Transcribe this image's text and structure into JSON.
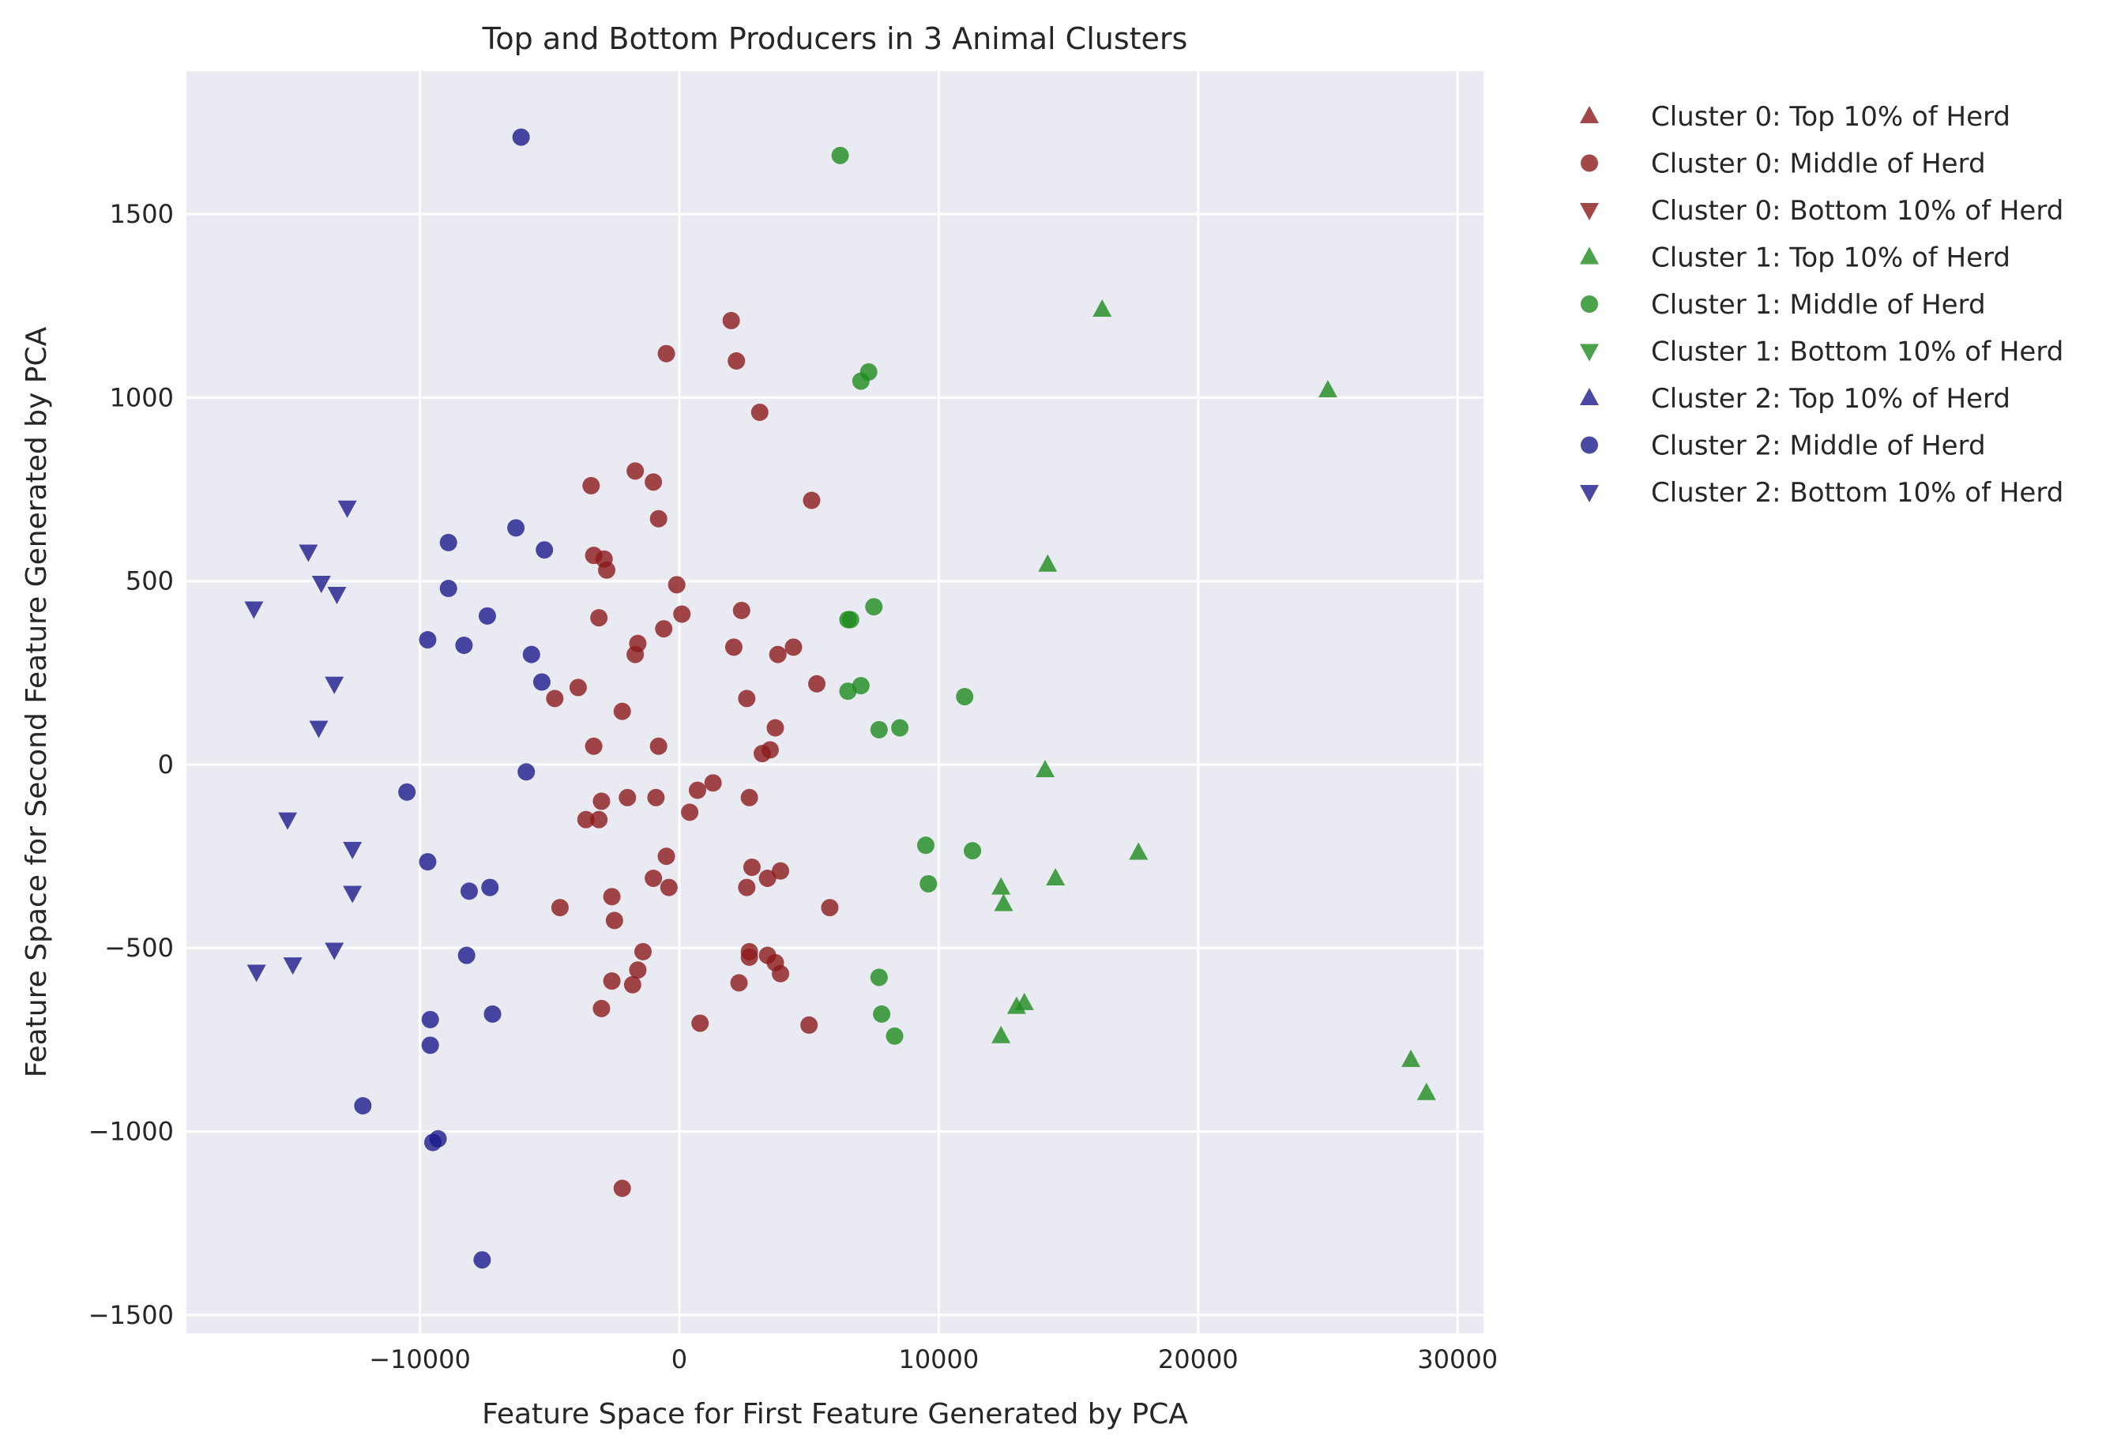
{
  "chart_data": {
    "type": "scatter",
    "title": "Top and Bottom Producers in 3 Animal Clusters",
    "xlabel": "Feature Space for First Feature Generated by PCA",
    "ylabel": "Feature Space for Second Feature Generated by PCA",
    "xlim": [
      -19000,
      31000
    ],
    "ylim": [
      -1550,
      1890
    ],
    "xticks": [
      -10000,
      0,
      10000,
      20000,
      30000
    ],
    "xtick_labels": [
      "−10000",
      "0",
      "10000",
      "20000",
      "30000"
    ],
    "yticks": [
      -1500,
      -1000,
      -500,
      0,
      500,
      1000,
      1500
    ],
    "ytick_labels": [
      "−1500",
      "−1000",
      "−500",
      "0",
      "500",
      "1000",
      "1500"
    ],
    "grid": true,
    "legend_position": "outside-right",
    "series": [
      {
        "name": "Cluster 0: Top 10% of Herd",
        "color": "#8b1a1a",
        "marker": "triangle-up",
        "points": []
      },
      {
        "name": "Cluster 0: Middle of Herd",
        "color": "#8b1a1a",
        "marker": "circle",
        "points": [
          [
            2000,
            1210
          ],
          [
            -500,
            1120
          ],
          [
            2200,
            1100
          ],
          [
            3100,
            960
          ],
          [
            -1700,
            800
          ],
          [
            -1000,
            770
          ],
          [
            -3400,
            760
          ],
          [
            -800,
            670
          ],
          [
            5100,
            720
          ],
          [
            -3300,
            570
          ],
          [
            -2900,
            560
          ],
          [
            -2800,
            530
          ],
          [
            -100,
            490
          ],
          [
            2400,
            420
          ],
          [
            -3100,
            400
          ],
          [
            100,
            410
          ],
          [
            -600,
            370
          ],
          [
            -1600,
            330
          ],
          [
            -1700,
            300
          ],
          [
            2100,
            320
          ],
          [
            4400,
            320
          ],
          [
            3800,
            300
          ],
          [
            -4800,
            180
          ],
          [
            -3900,
            210
          ],
          [
            5300,
            220
          ],
          [
            2600,
            180
          ],
          [
            -2200,
            145
          ],
          [
            3700,
            100
          ],
          [
            -3300,
            50
          ],
          [
            -800,
            50
          ],
          [
            3500,
            40
          ],
          [
            3200,
            30
          ],
          [
            1300,
            -50
          ],
          [
            700,
            -70
          ],
          [
            -2000,
            -90
          ],
          [
            -900,
            -90
          ],
          [
            -3000,
            -100
          ],
          [
            2700,
            -90
          ],
          [
            -3600,
            -150
          ],
          [
            -3100,
            -150
          ],
          [
            400,
            -130
          ],
          [
            -500,
            -250
          ],
          [
            2800,
            -280
          ],
          [
            3900,
            -290
          ],
          [
            -1000,
            -310
          ],
          [
            3400,
            -310
          ],
          [
            2600,
            -335
          ],
          [
            -400,
            -335
          ],
          [
            -2600,
            -360
          ],
          [
            -4600,
            -390
          ],
          [
            5800,
            -390
          ],
          [
            -2500,
            -425
          ],
          [
            -1400,
            -510
          ],
          [
            2700,
            -510
          ],
          [
            3400,
            -520
          ],
          [
            3700,
            -540
          ],
          [
            2700,
            -525
          ],
          [
            3900,
            -570
          ],
          [
            -1600,
            -560
          ],
          [
            -2600,
            -590
          ],
          [
            -1800,
            -600
          ],
          [
            2300,
            -595
          ],
          [
            -3000,
            -665
          ],
          [
            800,
            -705
          ],
          [
            5000,
            -710
          ],
          [
            -2200,
            -1155
          ]
        ]
      },
      {
        "name": "Cluster 0: Bottom 10% of Herd",
        "color": "#8b1a1a",
        "marker": "triangle-down",
        "points": []
      },
      {
        "name": "Cluster 1: Top 10% of Herd",
        "color": "#1e8b1e",
        "marker": "triangle-up",
        "points": [
          [
            16300,
            1240
          ],
          [
            25000,
            1020
          ],
          [
            14200,
            545
          ],
          [
            14100,
            -15
          ],
          [
            17700,
            -240
          ],
          [
            14500,
            -310
          ],
          [
            12400,
            -335
          ],
          [
            12500,
            -380
          ],
          [
            13000,
            -660
          ],
          [
            13300,
            -650
          ],
          [
            12400,
            -740
          ],
          [
            28200,
            -805
          ],
          [
            28800,
            -895
          ]
        ]
      },
      {
        "name": "Cluster 1: Middle of Herd",
        "color": "#1e8b1e",
        "marker": "circle",
        "points": [
          [
            6200,
            1660
          ],
          [
            7300,
            1070
          ],
          [
            7000,
            1045
          ],
          [
            7500,
            430
          ],
          [
            6500,
            395
          ],
          [
            6600,
            395
          ],
          [
            7000,
            215
          ],
          [
            6500,
            200
          ],
          [
            11000,
            185
          ],
          [
            7700,
            95
          ],
          [
            8500,
            100
          ],
          [
            9500,
            -220
          ],
          [
            11300,
            -235
          ],
          [
            9600,
            -325
          ],
          [
            7700,
            -580
          ],
          [
            7800,
            -680
          ],
          [
            8300,
            -740
          ]
        ]
      },
      {
        "name": "Cluster 1: Bottom 10% of Herd",
        "color": "#1e8b1e",
        "marker": "triangle-down",
        "points": []
      },
      {
        "name": "Cluster 2: Top 10% of Herd",
        "color": "#1c1a8b",
        "marker": "triangle-up",
        "points": []
      },
      {
        "name": "Cluster 2: Middle of Herd",
        "color": "#1c1a8b",
        "marker": "circle",
        "points": [
          [
            -6100,
            1710
          ],
          [
            -6300,
            645
          ],
          [
            -8900,
            605
          ],
          [
            -5200,
            585
          ],
          [
            -8900,
            480
          ],
          [
            -7400,
            405
          ],
          [
            -9700,
            340
          ],
          [
            -8300,
            325
          ],
          [
            -5700,
            300
          ],
          [
            -5300,
            225
          ],
          [
            -10500,
            -75
          ],
          [
            -5900,
            -20
          ],
          [
            -9700,
            -265
          ],
          [
            -8100,
            -345
          ],
          [
            -7300,
            -335
          ],
          [
            -8200,
            -520
          ],
          [
            -9600,
            -695
          ],
          [
            -7200,
            -680
          ],
          [
            -9600,
            -765
          ],
          [
            -12200,
            -930
          ],
          [
            -9300,
            -1020
          ],
          [
            -9500,
            -1030
          ],
          [
            -7600,
            -1350
          ]
        ]
      },
      {
        "name": "Cluster 2: Bottom 10% of Herd",
        "color": "#1c1a8b",
        "marker": "triangle-down",
        "points": [
          [
            -16400,
            425
          ],
          [
            -12800,
            700
          ],
          [
            -14300,
            580
          ],
          [
            -13800,
            495
          ],
          [
            -13200,
            465
          ],
          [
            -13300,
            220
          ],
          [
            -13900,
            100
          ],
          [
            -15100,
            -150
          ],
          [
            -12600,
            -230
          ],
          [
            -12600,
            -350
          ],
          [
            -16300,
            -565
          ],
          [
            -13300,
            -505
          ],
          [
            -14900,
            -545
          ]
        ]
      }
    ]
  }
}
